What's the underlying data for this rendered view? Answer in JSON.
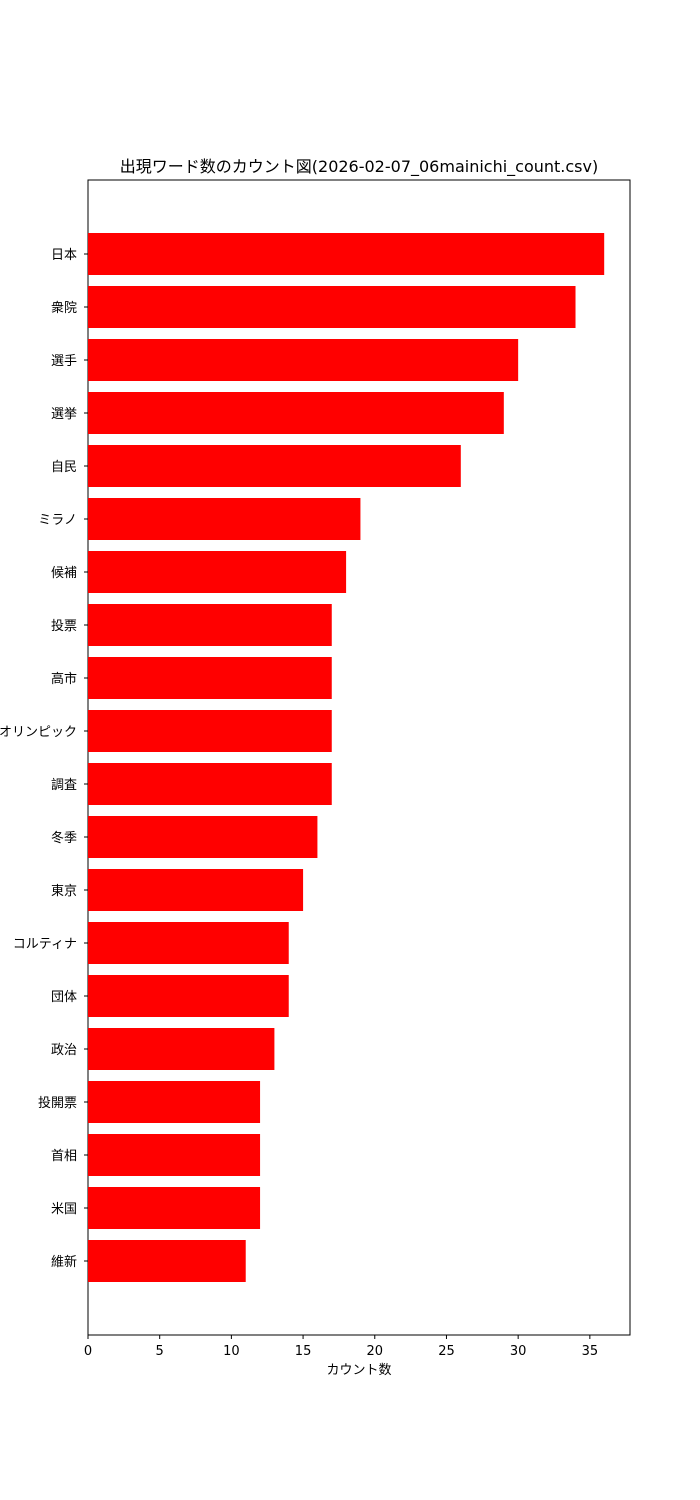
{
  "chart_data": {
    "type": "bar",
    "orientation": "horizontal",
    "title": "出現ワード数のカウント図(2026-02-07_06mainichi_count.csv)",
    "xlabel": "カウント数",
    "ylabel": "",
    "xlim": [
      0,
      37.8
    ],
    "xticks": [
      0,
      5,
      10,
      15,
      20,
      25,
      30,
      35
    ],
    "bar_color": "#ff0000",
    "grid": false,
    "categories": [
      "日本",
      "衆院",
      "選手",
      "選挙",
      "自民",
      "ミラノ",
      "候補",
      "投票",
      "高市",
      "オリンピック",
      "調査",
      "冬季",
      "東京",
      "コルティナ",
      "団体",
      "政治",
      "投開票",
      "首相",
      "米国",
      "維新"
    ],
    "values": [
      36,
      34,
      30,
      29,
      26,
      19,
      18,
      17,
      17,
      17,
      17,
      16,
      15,
      14,
      14,
      13,
      12,
      12,
      12,
      11
    ]
  }
}
